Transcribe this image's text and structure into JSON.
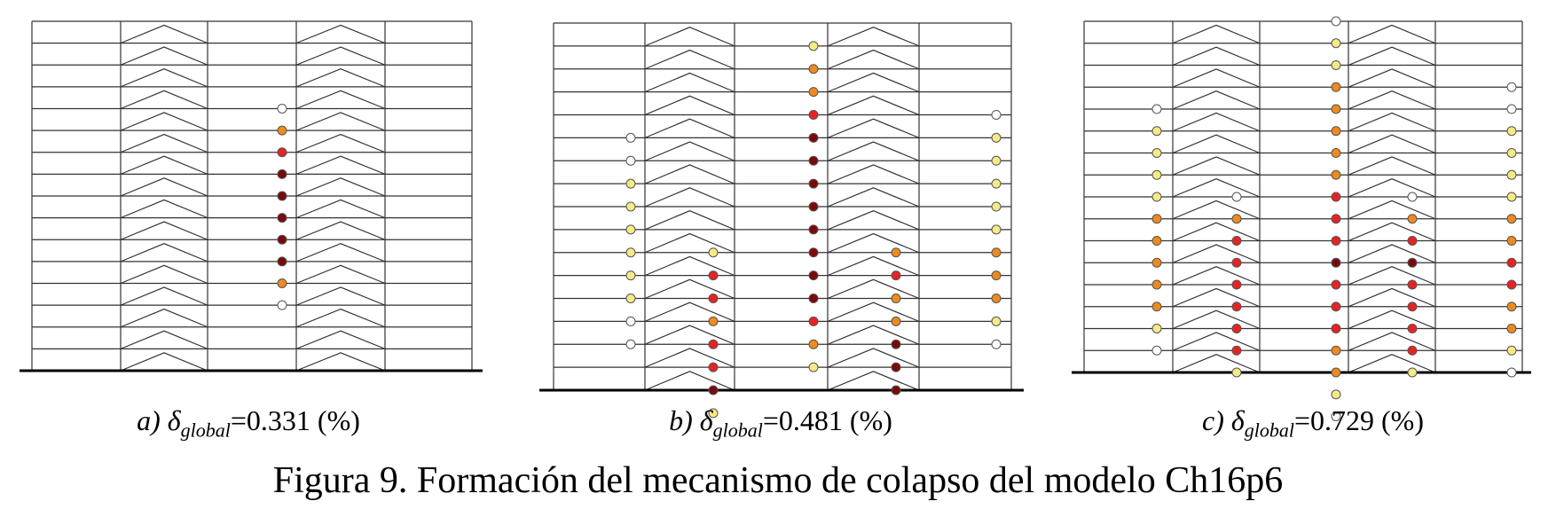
{
  "panels": [
    {
      "letter": "a)",
      "symbol": "δ",
      "subscript": "global",
      "value_text": "=0.331 (%)",
      "drift_percent": 0.331
    },
    {
      "letter": "b)",
      "symbol": "δ",
      "subscript": "global",
      "value_text": "=0.481 (%)",
      "drift_percent": 0.481
    },
    {
      "letter": "c)",
      "symbol": "δ",
      "subscript": "global",
      "value_text": "=0.729 (%)",
      "drift_percent": 0.729
    }
  ],
  "figure_caption": "Figura 9. Formación del mecanismo de colapso del modelo Ch16p6",
  "colors": {
    "line": "#333333",
    "ground": "#000000",
    "hinge_white": "#ffffff",
    "hinge_yellow": "#f5ea85",
    "hinge_orange": "#ee8a1e",
    "hinge_red": "#e82222",
    "hinge_darkred": "#7a0a0a"
  }
}
